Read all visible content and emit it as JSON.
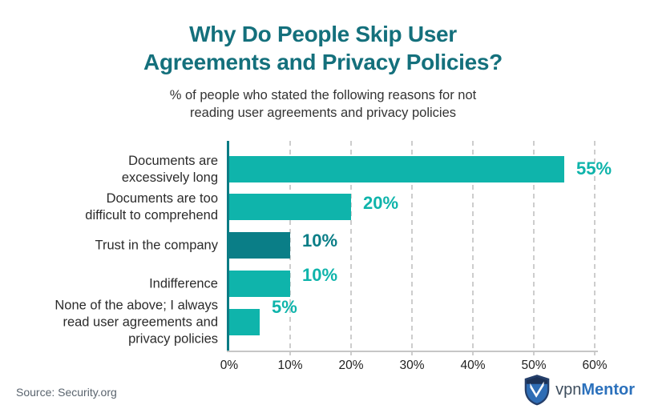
{
  "chart_data": {
    "type": "bar",
    "orientation": "horizontal",
    "title": "Why Do People Skip User Agreements and Privacy Policies?",
    "title_lines": [
      "Why Do People Skip User",
      "Agreements and Privacy Policies?"
    ],
    "subtitle": "% of people who stated the following reasons for not reading user agreements and privacy policies",
    "subtitle_lines": [
      "% of people who stated the following reasons for not",
      "reading user agreements and privacy policies"
    ],
    "categories": [
      "Documents are excessively long",
      "Documents are too difficult to comprehend",
      "Trust in the company",
      "Indifference",
      "None of the above; I always read user agreements and privacy policies"
    ],
    "category_lines": [
      [
        "Documents are",
        "excessively long"
      ],
      [
        "Documents are too",
        "difficult to comprehend"
      ],
      [
        "Trust in the company"
      ],
      [
        "Indifference"
      ],
      [
        "None of the above; I always",
        "read user agreements and",
        "privacy policies"
      ]
    ],
    "values": [
      55,
      20,
      10,
      10,
      5
    ],
    "value_labels": [
      "55%",
      "20%",
      "10%",
      "10%",
      "5%"
    ],
    "unit": "percent",
    "xlim": [
      0,
      60
    ],
    "x_ticks": [
      "0%",
      "10%",
      "20%",
      "30%",
      "40%",
      "50%",
      "60%"
    ],
    "grid": "vertical-dashed",
    "legend": "none",
    "bar_colors": [
      "#0FB4AB",
      "#0FB4AB",
      "#0A7E87",
      "#0FB4AB",
      "#0FB4AB"
    ],
    "value_label_colors": [
      "#0FB4AB",
      "#0FB4AB",
      "#0A7E87",
      "#0FB4AB",
      "#0FB4AB"
    ],
    "source": "Source: Security.org"
  },
  "colors": {
    "title_teal": "#14707C",
    "bar_teal_light": "#0FB4AB",
    "bar_teal_dark": "#0A7E87",
    "axis_gray": "#C6C6C6",
    "y_axis_teal": "#0B7B84",
    "brand_navy": "#253F6A",
    "brand_blue": "#2C71BC"
  },
  "footer": {
    "source": "Source: Security.org",
    "brand": {
      "prefix": "vpn",
      "suffix": "Mentor",
      "shield_icon": "vpnmentor-shield-icon"
    }
  }
}
